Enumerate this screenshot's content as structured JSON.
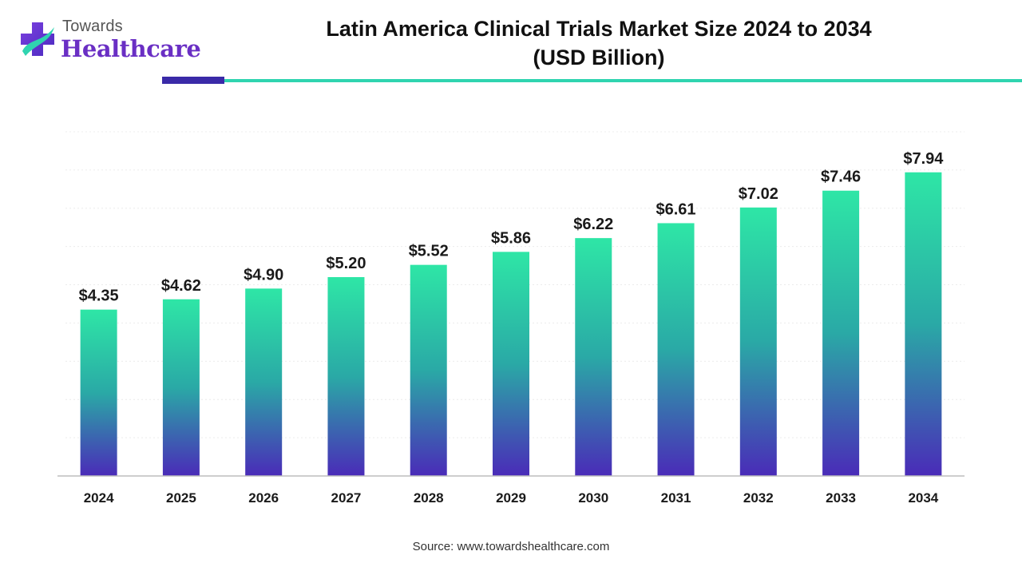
{
  "logo": {
    "line1": "Towards",
    "line2": "Healthcare",
    "icon": "medical-cross-logo-icon"
  },
  "chart_data": {
    "type": "bar",
    "title": "Latin America Clinical Trials Market Size 2024 to 2034",
    "subtitle": "(USD Billion)",
    "categories": [
      "2024",
      "2025",
      "2026",
      "2027",
      "2028",
      "2029",
      "2030",
      "2031",
      "2032",
      "2033",
      "2034"
    ],
    "values": [
      4.35,
      4.62,
      4.9,
      5.2,
      5.52,
      5.86,
      6.22,
      6.61,
      7.02,
      7.46,
      7.94
    ],
    "data_labels": [
      "$4.35",
      "$4.62",
      "$4.90",
      "$5.20",
      "$5.52",
      "$5.86",
      "$6.22",
      "$6.61",
      "$7.02",
      "$7.46",
      "$7.94"
    ],
    "xlabel": "",
    "ylabel": "",
    "ylim": [
      0,
      9
    ],
    "grid": true,
    "legend": "none",
    "colors": {
      "bar_top": "#2ee6a6",
      "bar_mid": "#2aa9a6",
      "bar_bottom": "#4a2bb8",
      "rule_dark": "#3a2aa8",
      "rule_teal": "#2fd4b0"
    }
  },
  "source": "Source: www.towardshealthcare.com"
}
